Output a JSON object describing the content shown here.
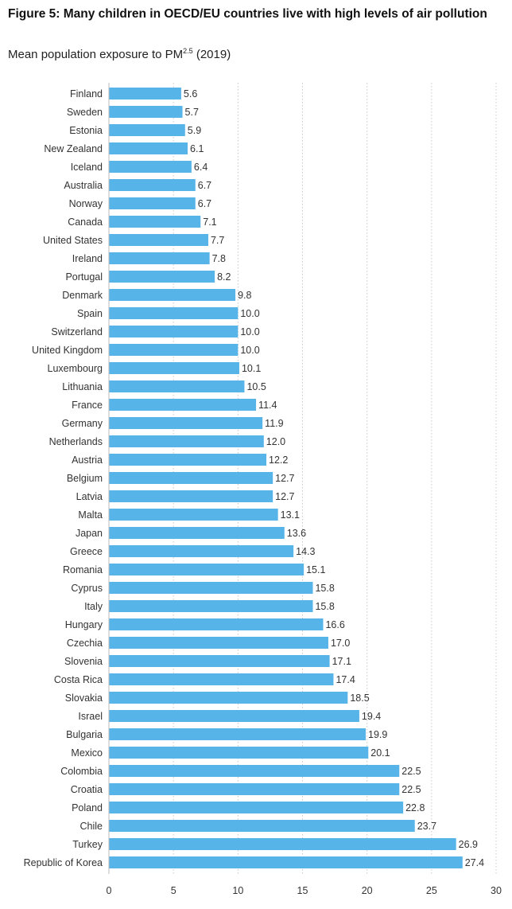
{
  "chart_data": {
    "type": "bar",
    "orientation": "horizontal",
    "title": "Figure 5: Many children in OECD/EU countries live with high levels of air pollution",
    "subtitle": "Mean population exposure to PM",
    "subtitle_sup": "2.5",
    "subtitle_year": " (2019)",
    "xlabel": "",
    "ylabel": "",
    "xlim": [
      0,
      30
    ],
    "xticks": [
      0,
      5,
      10,
      15,
      20,
      25,
      30
    ],
    "grid": true,
    "bar_color": "#56b4e9",
    "categories": [
      "Finland",
      "Sweden",
      "Estonia",
      "New Zealand",
      "Iceland",
      "Australia",
      "Norway",
      "Canada",
      "United States",
      "Ireland",
      "Portugal",
      "Denmark",
      "Spain",
      "Switzerland",
      "United Kingdom",
      "Luxembourg",
      "Lithuania",
      "France",
      "Germany",
      "Netherlands",
      "Austria",
      "Belgium",
      "Latvia",
      "Malta",
      "Japan",
      "Greece",
      "Romania",
      "Cyprus",
      "Italy",
      "Hungary",
      "Czechia",
      "Slovenia",
      "Costa Rica",
      "Slovakia",
      "Israel",
      "Bulgaria",
      "Mexico",
      "Colombia",
      "Croatia",
      "Poland",
      "Chile",
      "Turkey",
      "Republic of Korea"
    ],
    "values": [
      5.6,
      5.7,
      5.9,
      6.1,
      6.4,
      6.7,
      6.7,
      7.1,
      7.7,
      7.8,
      8.2,
      9.8,
      10.0,
      10.0,
      10.0,
      10.1,
      10.5,
      11.4,
      11.9,
      12.0,
      12.2,
      12.7,
      12.7,
      13.1,
      13.6,
      14.3,
      15.1,
      15.8,
      15.8,
      16.6,
      17.0,
      17.1,
      17.4,
      18.5,
      19.4,
      19.9,
      20.1,
      22.5,
      22.5,
      22.8,
      23.7,
      26.9,
      27.4
    ],
    "value_labels": [
      "5.6",
      "5.7",
      "5.9",
      "6.1",
      "6.4",
      "6.7",
      "6.7",
      "7.1",
      "7.7",
      "7.8",
      "8.2",
      "9.8",
      "10.0",
      "10.0",
      "10.0",
      "10.1",
      "10.5",
      "11.4",
      "11.9",
      "12.0",
      "12.2",
      "12.7",
      "12.7",
      "13.1",
      "13.6",
      "14.3",
      "15.1",
      "15.8",
      "15.8",
      "16.6",
      "17.0",
      "17.1",
      "17.4",
      "18.5",
      "19.4",
      "19.9",
      "20.1",
      "22.5",
      "22.5",
      "22.8",
      "23.7",
      "26.9",
      "27.4"
    ]
  }
}
